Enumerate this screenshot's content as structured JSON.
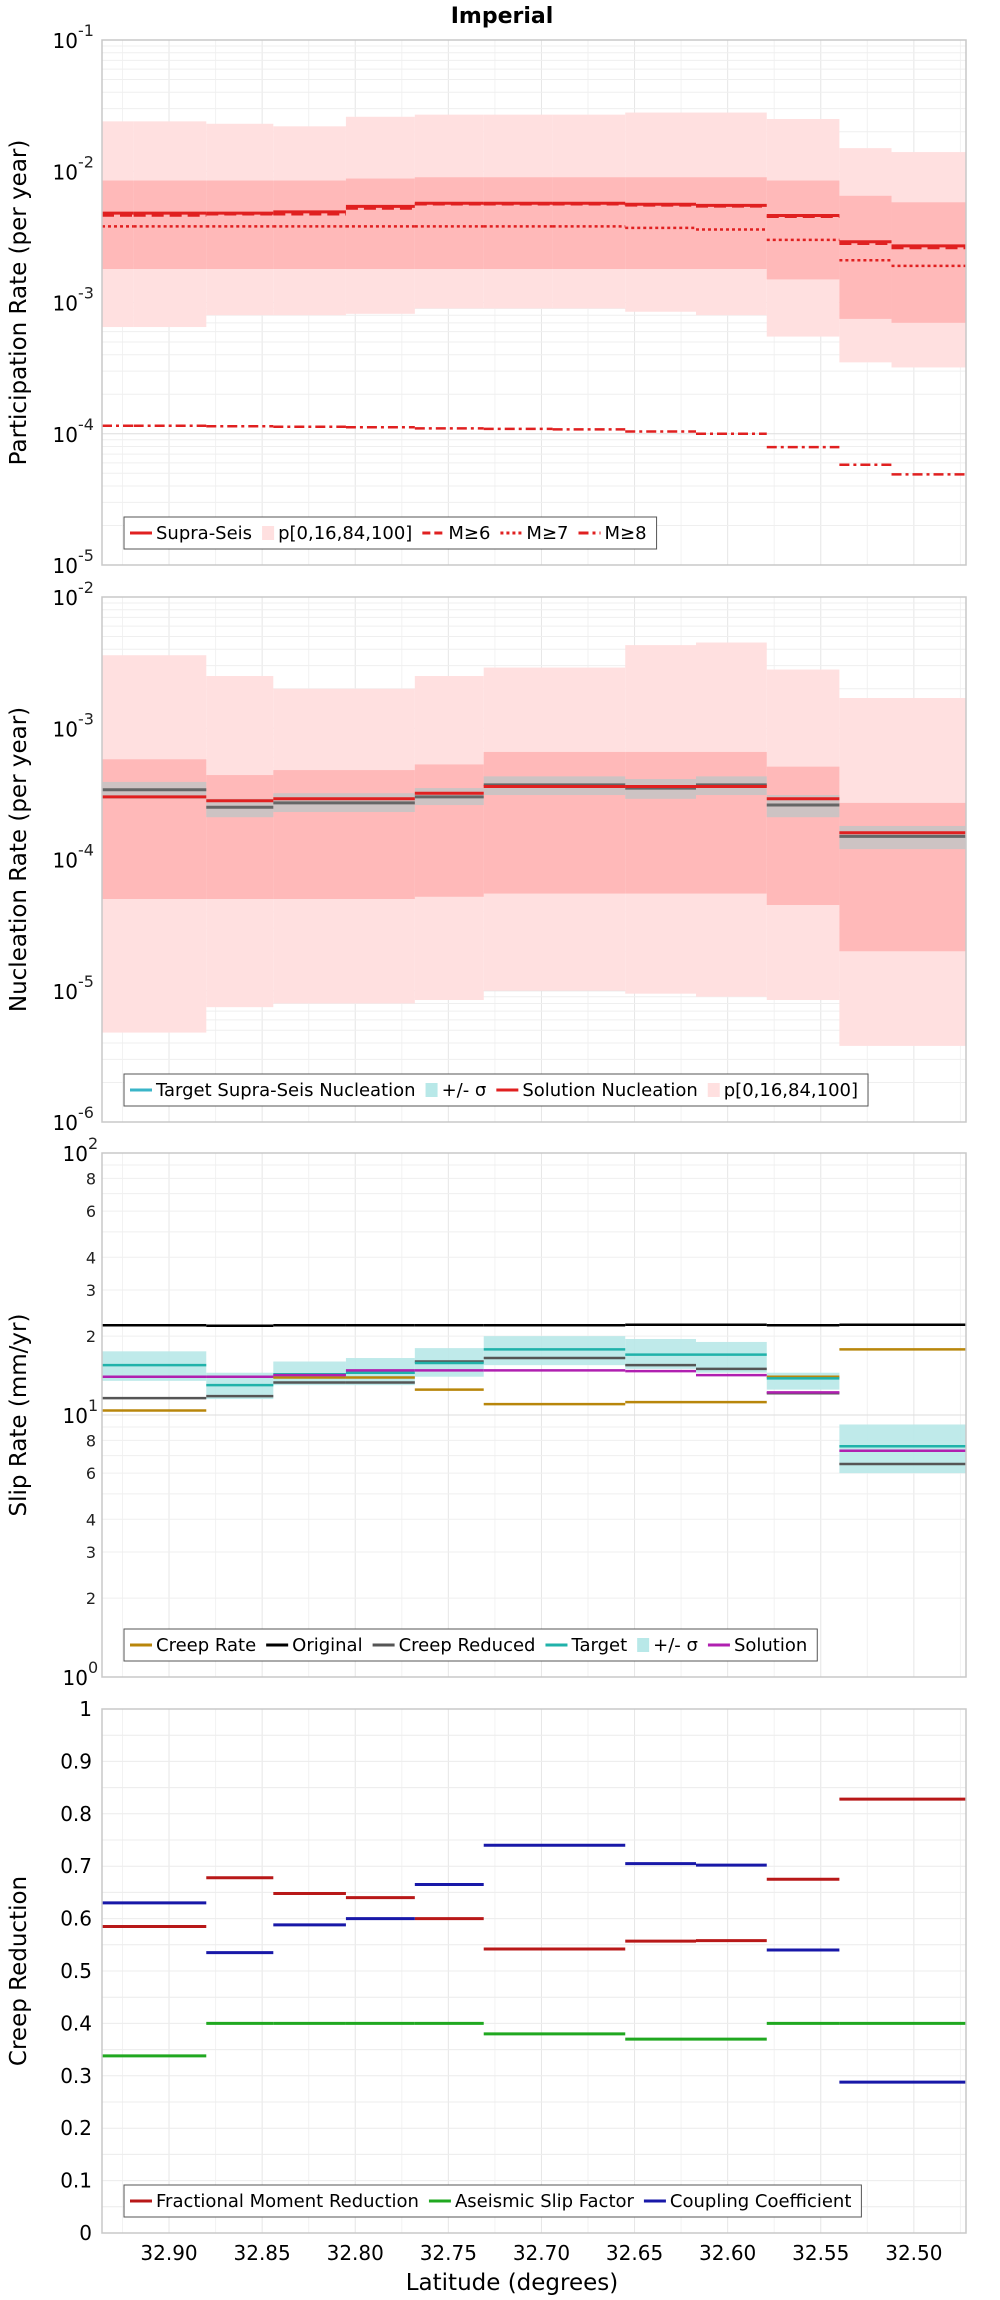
{
  "figure": {
    "title": "Imperial",
    "xlabel": "Latitude (degrees)",
    "x_ticks": [
      32.9,
      32.85,
      32.8,
      32.75,
      32.7,
      32.65,
      32.6,
      32.55,
      32.5
    ],
    "x_tick_labels": [
      "32.90",
      "32.85",
      "32.80",
      "32.75",
      "32.70",
      "32.65",
      "32.60",
      "32.55",
      "32.50"
    ],
    "xlim": [
      32.936,
      32.472
    ]
  },
  "chart_data": [
    {
      "type": "line",
      "ylabel": "Participation Rate (per year)",
      "yscale": "log",
      "ylim": [
        1e-05,
        0.1
      ],
      "ytick_labels": [
        {
          "base": "10",
          "exp": "-5"
        },
        {
          "base": "10",
          "exp": "-4"
        },
        {
          "base": "10",
          "exp": "-3"
        },
        {
          "base": "10",
          "exp": "-2"
        },
        {
          "base": "10",
          "exp": "-1"
        }
      ],
      "grid": true,
      "legend_position": "bottom-left",
      "x_bins": [
        32.936,
        32.919,
        32.88,
        32.844,
        32.805,
        32.768,
        32.731,
        32.694,
        32.655,
        32.617,
        32.579,
        32.54,
        32.512,
        32.472
      ],
      "band_outer": {
        "color": "#ffe0e0",
        "lower": [
          0.00065,
          0.00065,
          0.0008,
          0.0008,
          0.00082,
          0.0009,
          0.0009,
          0.0009,
          0.00085,
          0.0008,
          0.00055,
          0.00035,
          0.00032
        ],
        "upper": [
          0.024,
          0.024,
          0.023,
          0.022,
          0.026,
          0.027,
          0.027,
          0.027,
          0.028,
          0.028,
          0.025,
          0.015,
          0.014
        ]
      },
      "band_inner": {
        "color": "#ffb9b9",
        "lower": [
          0.0018,
          0.0018,
          0.0018,
          0.0018,
          0.0018,
          0.0018,
          0.0018,
          0.0018,
          0.0018,
          0.0018,
          0.0015,
          0.00075,
          0.0007
        ],
        "upper": [
          0.0085,
          0.0085,
          0.0085,
          0.0085,
          0.0088,
          0.009,
          0.009,
          0.009,
          0.009,
          0.009,
          0.0085,
          0.0065,
          0.0058
        ]
      },
      "series": [
        {
          "name": "Supra-Seis",
          "color": "#e02020",
          "style": "solid",
          "values": [
            0.0048,
            0.0048,
            0.0048,
            0.0049,
            0.0054,
            0.0057,
            0.0057,
            0.0057,
            0.0056,
            0.0055,
            0.0046,
            0.0029,
            0.0027
          ]
        },
        {
          "name": "M≥6",
          "color": "#e02020",
          "style": "dashed",
          "values": [
            0.0046,
            0.0046,
            0.0047,
            0.0047,
            0.0052,
            0.0056,
            0.0056,
            0.0056,
            0.0055,
            0.0054,
            0.0045,
            0.0028,
            0.0026
          ]
        },
        {
          "name": "M≥7",
          "color": "#e02020",
          "style": "dotted",
          "values": [
            0.0038,
            0.0038,
            0.0038,
            0.0038,
            0.0038,
            0.0038,
            0.0038,
            0.0038,
            0.0037,
            0.0036,
            0.003,
            0.0021,
            0.0019
          ]
        },
        {
          "name": "M≥8",
          "color": "#e02020",
          "style": "dashdot",
          "values": [
            0.000115,
            0.000115,
            0.000114,
            0.000113,
            0.000112,
            0.00011,
            0.000109,
            0.000108,
            0.000104,
            0.0001,
            7.9e-05,
            5.8e-05,
            4.9e-05
          ]
        }
      ],
      "legend": [
        {
          "label": "Supra-Seis",
          "kind": "line",
          "color": "#e02020",
          "style": "solid"
        },
        {
          "label": "p[0,16,84,100]",
          "kind": "band",
          "color": "#ffe0e0"
        },
        {
          "label": "M≥6",
          "kind": "line",
          "color": "#e02020",
          "style": "dashed"
        },
        {
          "label": "M≥7",
          "kind": "line",
          "color": "#e02020",
          "style": "dotted"
        },
        {
          "label": "M≥8",
          "kind": "line",
          "color": "#e02020",
          "style": "dashdot"
        }
      ]
    },
    {
      "type": "line",
      "ylabel": "Nucleation Rate (per year)",
      "yscale": "log",
      "ylim": [
        1e-06,
        0.01
      ],
      "ytick_labels": [
        {
          "base": "10",
          "exp": "-6"
        },
        {
          "base": "10",
          "exp": "-5"
        },
        {
          "base": "10",
          "exp": "-4"
        },
        {
          "base": "10",
          "exp": "-3"
        },
        {
          "base": "10",
          "exp": "-2"
        }
      ],
      "grid": true,
      "legend_position": "bottom-left",
      "x_bins": [
        32.936,
        32.88,
        32.844,
        32.768,
        32.731,
        32.655,
        32.617,
        32.579,
        32.54,
        32.472
      ],
      "band_outer": {
        "color": "#ffe0e0",
        "lower": [
          4.8e-06,
          7.5e-06,
          8e-06,
          8.5e-06,
          1e-05,
          9.5e-06,
          9e-06,
          8.5e-06,
          3.8e-06
        ],
        "upper": [
          0.0036,
          0.0025,
          0.002,
          0.0025,
          0.0029,
          0.0043,
          0.0045,
          0.0028,
          0.0017
        ]
      },
      "band_inner": {
        "color": "#ffb9b9",
        "lower": [
          5e-05,
          5e-05,
          5e-05,
          5.2e-05,
          5.5e-05,
          5.5e-05,
          5.5e-05,
          4.5e-05,
          2e-05
        ],
        "upper": [
          0.00058,
          0.00044,
          0.00048,
          0.00053,
          0.00066,
          0.00066,
          0.00066,
          0.00051,
          0.00027
        ]
      },
      "target_band": {
        "color": "#c4c4c4",
        "lower": [
          0.00029,
          0.00021,
          0.00023,
          0.00026,
          0.00031,
          0.00029,
          0.00031,
          0.00021,
          0.00012
        ],
        "upper": [
          0.00039,
          0.00029,
          0.00032,
          0.00035,
          0.00043,
          0.00041,
          0.00043,
          0.00031,
          0.00018
        ]
      },
      "series": [
        {
          "name": "Target Supra-Seis Nucleation",
          "color": "#666666",
          "values": [
            0.00034,
            0.00025,
            0.00027,
            0.0003,
            0.00037,
            0.00035,
            0.00037,
            0.00026,
            0.00015
          ]
        },
        {
          "name": "Solution Nucleation",
          "color": "#e02020",
          "values": [
            0.0003,
            0.00028,
            0.00029,
            0.00032,
            0.00036,
            0.00036,
            0.00036,
            0.00029,
            0.00016
          ]
        }
      ],
      "legend": [
        {
          "label": "Target Supra-Seis Nucleation",
          "kind": "line",
          "color": "#3ab5c8",
          "style": "solid"
        },
        {
          "label": "+/- σ",
          "kind": "band",
          "color": "#b8e8e8"
        },
        {
          "label": "Solution Nucleation",
          "kind": "line",
          "color": "#e02020",
          "style": "solid"
        },
        {
          "label": "p[0,16,84,100]",
          "kind": "band",
          "color": "#ffe0e0"
        }
      ]
    },
    {
      "type": "line",
      "ylabel": "Slip Rate (mm/yr)",
      "yscale": "log",
      "ylim": [
        1,
        100
      ],
      "ytick_labels": [
        {
          "base": "10",
          "exp": "0"
        },
        {
          "base": "10",
          "exp": "1"
        },
        {
          "base": "10",
          "exp": "2"
        }
      ],
      "minor_ticks": [
        2,
        3,
        4,
        6,
        8,
        20,
        30,
        40,
        60,
        80
      ],
      "minor_tick_labels": [
        "2",
        "3",
        "4",
        "6",
        "8",
        "2",
        "3",
        "4",
        "6",
        "8"
      ],
      "grid": true,
      "legend_position": "bottom-left",
      "x_bins": [
        32.936,
        32.88,
        32.844,
        32.805,
        32.768,
        32.731,
        32.655,
        32.617,
        32.579,
        32.54,
        32.472
      ],
      "sigma_band": {
        "color": "#b8e8e8",
        "lower": [
          13.5,
          11.5,
          13.0,
          13.0,
          14.0,
          15.5,
          15.0,
          14.5,
          12.5,
          6.0
        ],
        "upper": [
          17.5,
          14.5,
          16.0,
          16.5,
          18.0,
          20.0,
          19.5,
          19.0,
          14.5,
          9.2
        ]
      },
      "series": [
        {
          "name": "Creep Rate",
          "color": "#b8860b",
          "values": [
            10.4,
            14.0,
            13.9,
            13.9,
            12.5,
            11.0,
            11.2,
            11.2,
            14.0,
            17.8
          ]
        },
        {
          "name": "Original",
          "color": "#000000",
          "values": [
            22.0,
            21.9,
            22.0,
            22.0,
            22.0,
            22.0,
            22.1,
            22.1,
            22.0,
            22.1
          ]
        },
        {
          "name": "Creep Reduced",
          "color": "#555555",
          "values": [
            11.6,
            11.8,
            13.3,
            13.3,
            16.0,
            16.5,
            15.5,
            15.0,
            12.1,
            6.5
          ]
        },
        {
          "name": "Target",
          "color": "#20b2aa",
          "values": [
            15.5,
            13.0,
            14.3,
            14.5,
            15.8,
            17.8,
            17.0,
            17.0,
            13.8,
            7.6
          ]
        },
        {
          "name": "Solution",
          "color": "#b020b0",
          "values": [
            14.0,
            14.0,
            14.2,
            14.8,
            14.8,
            14.8,
            14.7,
            14.2,
            12.2,
            7.3
          ]
        }
      ],
      "series_bins": {
        "Creep Rate": [
          32.936,
          32.88,
          32.844,
          32.805,
          32.768,
          32.731,
          32.655,
          32.617,
          32.579,
          32.54,
          32.472
        ],
        "Original": [
          32.936,
          32.88,
          32.844,
          32.805,
          32.768,
          32.731,
          32.655,
          32.617,
          32.579,
          32.54,
          32.472
        ],
        "Creep Reduced": [
          32.936,
          32.88,
          32.844,
          32.805,
          32.768,
          32.731,
          32.655,
          32.617,
          32.579,
          32.54,
          32.472
        ],
        "Target": [
          32.936,
          32.88,
          32.844,
          32.805,
          32.768,
          32.731,
          32.655,
          32.617,
          32.579,
          32.54,
          32.472
        ],
        "Solution": [
          32.936,
          32.88,
          32.844,
          32.805,
          32.768,
          32.731,
          32.655,
          32.617,
          32.579,
          32.54,
          32.472
        ]
      },
      "solution_upper_last": 8.2,
      "legend": [
        {
          "label": "Creep Rate",
          "kind": "line",
          "color": "#b8860b",
          "style": "solid"
        },
        {
          "label": "Original",
          "kind": "line",
          "color": "#000000",
          "style": "solid"
        },
        {
          "label": "Creep Reduced",
          "kind": "line",
          "color": "#555555",
          "style": "solid"
        },
        {
          "label": "Target",
          "kind": "line",
          "color": "#20b2aa",
          "style": "solid"
        },
        {
          "label": "+/- σ",
          "kind": "band",
          "color": "#b8e8e8"
        },
        {
          "label": "Solution",
          "kind": "line",
          "color": "#b020b0",
          "style": "solid"
        }
      ]
    },
    {
      "type": "line",
      "ylabel": "Creep Reduction",
      "yscale": "linear",
      "ylim": [
        0,
        1
      ],
      "y_ticks": [
        0,
        0.1,
        0.2,
        0.3,
        0.4,
        0.5,
        0.6,
        0.7,
        0.8,
        0.9,
        1
      ],
      "y_tick_labels": [
        "0",
        "0.1",
        "0.2",
        "0.3",
        "0.4",
        "0.5",
        "0.6",
        "0.7",
        "0.8",
        "0.9",
        "1"
      ],
      "grid": true,
      "legend_position": "bottom-left",
      "x_bins": [
        32.936,
        32.88,
        32.844,
        32.805,
        32.768,
        32.731,
        32.655,
        32.617,
        32.579,
        32.54,
        32.472
      ],
      "series": [
        {
          "name": "Fractional Moment Reduction",
          "color": "#b81818",
          "values": [
            0.585,
            0.678,
            0.648,
            0.64,
            0.6,
            0.542,
            0.557,
            0.558,
            0.675,
            0.828
          ]
        },
        {
          "name": "Aseismic Slip Factor",
          "color": "#20a820",
          "values": [
            0.338,
            0.4,
            0.4,
            0.4,
            0.4,
            0.38,
            0.37,
            0.37,
            0.4,
            0.4
          ]
        },
        {
          "name": "Coupling Coefficient",
          "color": "#1818a8",
          "values": [
            0.63,
            0.535,
            0.588,
            0.6,
            0.665,
            0.74,
            0.705,
            0.702,
            0.54,
            0.288
          ]
        }
      ],
      "legend": [
        {
          "label": "Fractional Moment Reduction",
          "kind": "line",
          "color": "#b81818",
          "style": "solid"
        },
        {
          "label": "Aseismic Slip Factor",
          "kind": "line",
          "color": "#20a820",
          "style": "solid"
        },
        {
          "label": "Coupling Coefficient",
          "kind": "line",
          "color": "#1818a8",
          "style": "solid"
        }
      ]
    }
  ]
}
